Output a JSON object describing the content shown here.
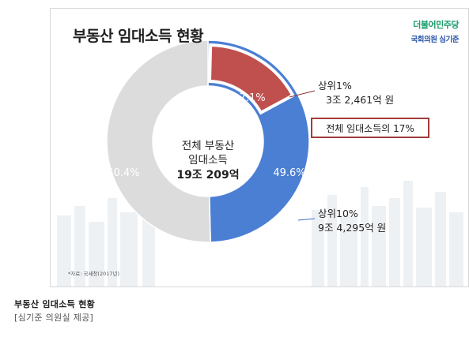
{
  "card": {
    "title": "부동산 임대소득 현황",
    "brand_party": "더불어민주당",
    "brand_member": "국회의원 심기준",
    "source_note": "*자료: 국세청(2017년)"
  },
  "caption": {
    "title": "부동산 임대소득 현황",
    "credit": "[심기준 의원실 제공]"
  },
  "chart_data": {
    "type": "pie",
    "center_label": [
      "전체 부동산",
      "임대소득",
      "19조 209억"
    ],
    "slices": [
      {
        "value": 49.6,
        "label": "49.6%",
        "color": "#4a7fd4"
      },
      {
        "value": 50.4,
        "label": "50.4%",
        "color": "#dcdcdc"
      }
    ],
    "sub_slice": {
      "value": 17.1,
      "label": "17.1%",
      "color": "#c0504d",
      "border_color": "#ffffff"
    },
    "annotations": {
      "top1": {
        "lines": [
          "상위1%",
          "3조 2,461억 원"
        ]
      },
      "top1_share": {
        "text": "전체 임대소득의 17%",
        "border_color": "#a33c3c"
      },
      "top10": {
        "lines": [
          "상위10%",
          "9조 4,295억 원"
        ]
      }
    }
  }
}
